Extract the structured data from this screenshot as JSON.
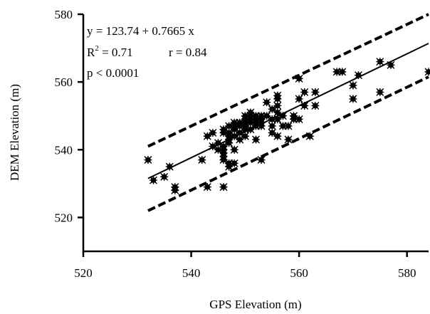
{
  "chart_data": {
    "type": "scatter",
    "title": "",
    "xlabel": "GPS Elevation (m)",
    "ylabel": "DEM Elevation (m)",
    "xlim": [
      520,
      584
    ],
    "ylim": [
      510,
      580
    ],
    "xticks": [
      520,
      540,
      560,
      580
    ],
    "yticks": [
      520,
      540,
      560,
      580
    ],
    "grid": false,
    "annotations": {
      "equation": "y = 123.74 + 0.7665 x",
      "r2_label": "R",
      "r2_sup": "2",
      "r2_value": " = 0.71",
      "r": "r = 0.84",
      "p": "p < 0.0001"
    },
    "regression": {
      "intercept": 123.74,
      "slope": 0.7665,
      "x_range": [
        532,
        584
      ]
    },
    "upper_bound": {
      "x": [
        532,
        584
      ],
      "y": [
        541,
        580
      ]
    },
    "lower_bound": {
      "x": [
        532,
        584
      ],
      "y": [
        522,
        561.5
      ]
    },
    "points": [
      [
        532,
        537
      ],
      [
        533,
        531
      ],
      [
        535,
        532
      ],
      [
        536,
        535
      ],
      [
        537,
        529
      ],
      [
        537,
        528
      ],
      [
        542,
        537
      ],
      [
        543,
        529
      ],
      [
        543,
        544
      ],
      [
        544,
        545
      ],
      [
        544,
        541
      ],
      [
        545,
        542
      ],
      [
        545,
        540
      ],
      [
        546,
        529
      ],
      [
        546,
        537
      ],
      [
        546,
        538
      ],
      [
        546,
        539
      ],
      [
        546,
        540
      ],
      [
        546,
        541
      ],
      [
        546,
        545
      ],
      [
        546,
        546
      ],
      [
        547,
        535
      ],
      [
        547,
        536
      ],
      [
        547,
        542
      ],
      [
        547,
        543
      ],
      [
        547,
        544
      ],
      [
        547,
        545
      ],
      [
        547,
        547
      ],
      [
        548,
        536
      ],
      [
        548,
        540
      ],
      [
        548,
        544
      ],
      [
        548,
        546
      ],
      [
        548,
        547
      ],
      [
        548,
        548
      ],
      [
        549,
        543
      ],
      [
        549,
        545
      ],
      [
        549,
        547
      ],
      [
        549,
        548
      ],
      [
        550,
        544
      ],
      [
        550,
        546
      ],
      [
        550,
        547
      ],
      [
        550,
        548
      ],
      [
        550,
        549
      ],
      [
        550,
        550
      ],
      [
        551,
        546
      ],
      [
        551,
        548
      ],
      [
        551,
        549
      ],
      [
        551,
        550
      ],
      [
        551,
        551
      ],
      [
        552,
        543
      ],
      [
        552,
        547
      ],
      [
        552,
        548
      ],
      [
        552,
        549
      ],
      [
        552,
        550
      ],
      [
        553,
        537
      ],
      [
        553,
        547
      ],
      [
        553,
        548
      ],
      [
        553,
        549
      ],
      [
        553,
        550
      ],
      [
        554,
        550
      ],
      [
        554,
        554
      ],
      [
        555,
        545
      ],
      [
        555,
        547
      ],
      [
        555,
        549
      ],
      [
        555,
        552
      ],
      [
        556,
        544
      ],
      [
        556,
        549
      ],
      [
        556,
        551
      ],
      [
        556,
        553
      ],
      [
        556,
        555
      ],
      [
        556,
        556
      ],
      [
        557,
        547
      ],
      [
        557,
        550
      ],
      [
        558,
        543
      ],
      [
        558,
        547
      ],
      [
        559,
        549
      ],
      [
        559,
        550
      ],
      [
        560,
        549
      ],
      [
        560,
        555
      ],
      [
        560,
        561
      ],
      [
        561,
        553
      ],
      [
        561,
        557
      ],
      [
        562,
        544
      ],
      [
        563,
        553
      ],
      [
        563,
        557
      ],
      [
        567,
        563
      ],
      [
        568,
        563
      ],
      [
        570,
        555
      ],
      [
        570,
        559
      ],
      [
        571,
        562
      ],
      [
        575,
        557
      ],
      [
        575,
        566
      ],
      [
        577,
        565
      ],
      [
        584,
        563
      ]
    ]
  }
}
